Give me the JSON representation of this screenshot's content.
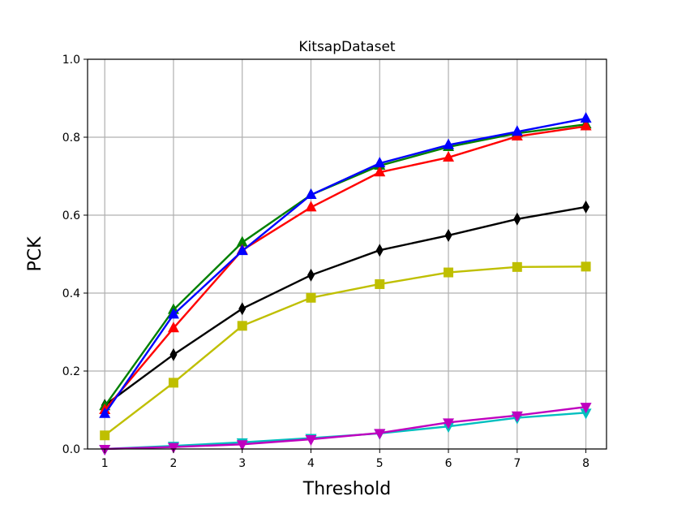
{
  "chart_data": {
    "type": "line",
    "title": "KitsapDataset",
    "xlabel": "Threshold",
    "ylabel": "PCK",
    "x": [
      1,
      2,
      3,
      4,
      5,
      6,
      7,
      8
    ],
    "xlim": [
      0.75,
      8.3
    ],
    "ylim": [
      0.0,
      1.0
    ],
    "xticks": [
      "1",
      "2",
      "3",
      "4",
      "5",
      "6",
      "7",
      "8"
    ],
    "yticks": [
      "0.0",
      "0.2",
      "0.4",
      "0.6",
      "0.8",
      "1.0"
    ],
    "grid": true,
    "series": [
      {
        "name": "black-diamond",
        "color": "#000000",
        "marker": "diamond",
        "values": [
          0.112,
          0.242,
          0.36,
          0.446,
          0.51,
          0.548,
          0.59,
          0.621
        ]
      },
      {
        "name": "yellow-square",
        "color": "#bfbf00",
        "marker": "square",
        "values": [
          0.035,
          0.17,
          0.316,
          0.388,
          0.423,
          0.453,
          0.467,
          0.468
        ]
      },
      {
        "name": "green-triangle",
        "color": "#008000",
        "marker": "triangle-up",
        "values": [
          0.11,
          0.357,
          0.53,
          0.652,
          0.727,
          0.775,
          0.81,
          0.833
        ]
      },
      {
        "name": "red-triangle",
        "color": "#ff0000",
        "marker": "triangle-up",
        "values": [
          0.1,
          0.31,
          0.51,
          0.62,
          0.71,
          0.748,
          0.802,
          0.828
        ]
      },
      {
        "name": "blue-triangle",
        "color": "#0000ff",
        "marker": "triangle-up",
        "values": [
          0.09,
          0.345,
          0.508,
          0.652,
          0.733,
          0.78,
          0.814,
          0.848
        ]
      },
      {
        "name": "cyan-triangle-down",
        "color": "#00bfbf",
        "marker": "triangle-down",
        "values": [
          0.0,
          0.008,
          0.017,
          0.028,
          0.04,
          0.058,
          0.08,
          0.093
        ]
      },
      {
        "name": "magenta-triangle-down",
        "color": "#bf00bf",
        "marker": "triangle-down",
        "values": [
          0.0,
          0.005,
          0.012,
          0.025,
          0.041,
          0.068,
          0.086,
          0.108
        ]
      }
    ]
  }
}
